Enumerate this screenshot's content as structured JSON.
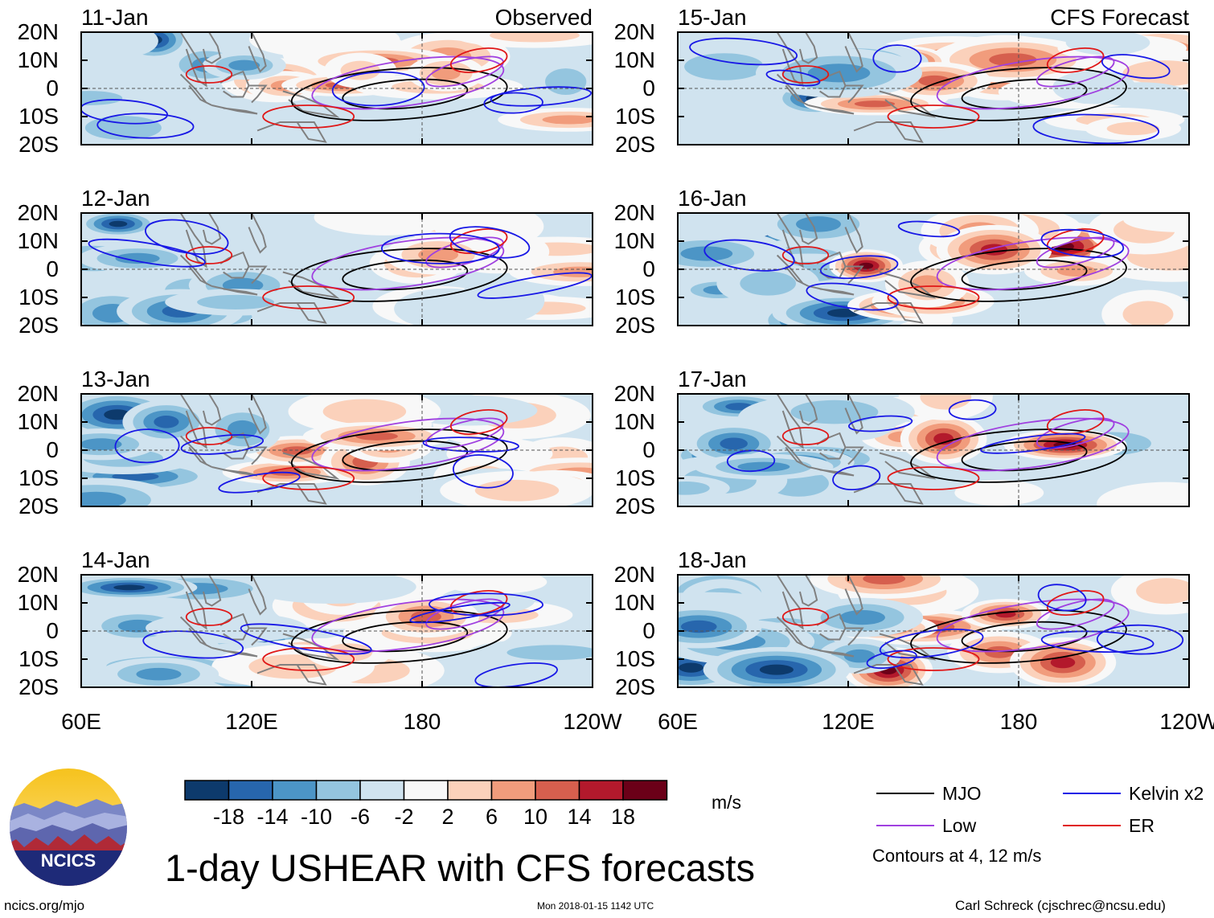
{
  "chart_data": {
    "type": "heatmap",
    "title": "1-day USHEAR with CFS forecasts",
    "variable": "USHEAR",
    "units": "m/s",
    "x_axis": {
      "ticks": [
        "60E",
        "120E",
        "180",
        "120W"
      ],
      "range_deg_east": [
        60,
        240
      ]
    },
    "y_axis": {
      "ticks": [
        "20N",
        "10N",
        "0",
        "10S",
        "20S"
      ],
      "range_deg_lat": [
        20,
        -20
      ]
    },
    "colorbar": {
      "labels": [
        "-18",
        "-14",
        "-10",
        "-6",
        "-2",
        "2",
        "6",
        "10",
        "14",
        "18"
      ],
      "colors": [
        "#0d3a6c",
        "#2766ad",
        "#4c95c6",
        "#94c5df",
        "#d0e3ef",
        "#f8f8f8",
        "#fbd1bb",
        "#f19c7c",
        "#d65f4e",
        "#b3192c",
        "#6b0018"
      ]
    },
    "contour_legend": [
      {
        "label": "MJO",
        "color": "#000000"
      },
      {
        "label": "Kelvin x2",
        "color": "#1818e6"
      },
      {
        "label": "Low",
        "color": "#a040e0"
      },
      {
        "label": "ER",
        "color": "#e01818"
      }
    ],
    "contour_note": "Contours at 4, 12 m/s",
    "panels": [
      {
        "date": "11-Jan",
        "label": "Observed",
        "source": "observed"
      },
      {
        "date": "12-Jan",
        "label": "",
        "source": "observed"
      },
      {
        "date": "13-Jan",
        "label": "",
        "source": "observed"
      },
      {
        "date": "14-Jan",
        "label": "",
        "source": "observed"
      },
      {
        "date": "15-Jan",
        "label": "CFS Forecast",
        "source": "forecast"
      },
      {
        "date": "16-Jan",
        "label": "",
        "source": "forecast"
      },
      {
        "date": "17-Jan",
        "label": "",
        "source": "forecast"
      },
      {
        "date": "18-Jan",
        "label": "",
        "source": "forecast"
      }
    ]
  },
  "logo": {
    "text": "NCICS"
  },
  "footer": {
    "left": "ncics.org/mjo",
    "center": "Mon 2018-01-15 1142 UTC",
    "right": "Carl Schreck (cjschrec@ncsu.edu)"
  },
  "colors": {
    "mjo": "#000000",
    "kelvin": "#1818e6",
    "low": "#a040e0",
    "er": "#e01818",
    "land": "#808080"
  }
}
